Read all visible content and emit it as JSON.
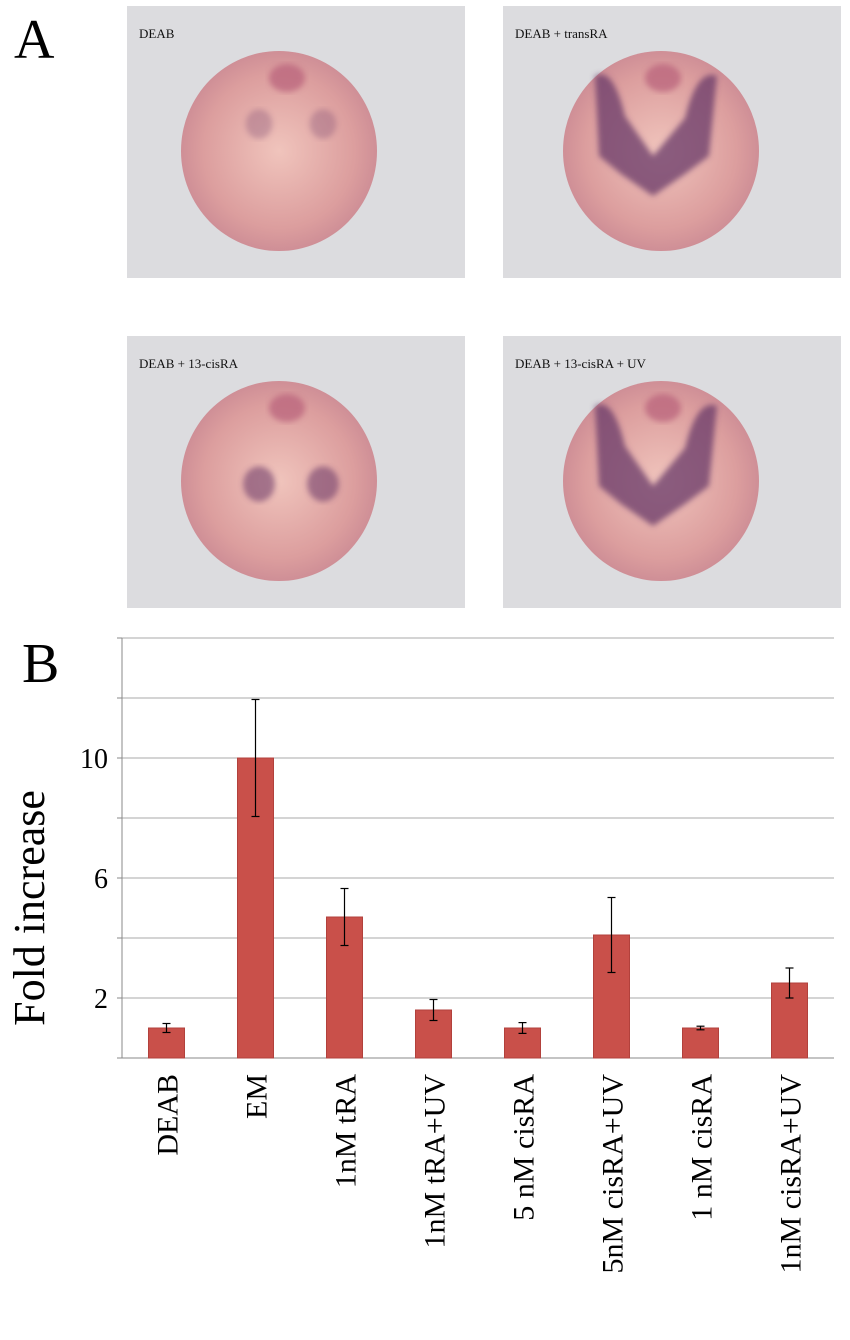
{
  "panel_a": {
    "letter": "A",
    "images": [
      {
        "label": "DEAB",
        "stain": "weak"
      },
      {
        "label": "DEAB + transRA",
        "stain": "strong"
      },
      {
        "label": "DEAB + 13-cisRA",
        "stain": "medium"
      },
      {
        "label": "DEAB + 13-cisRA + UV",
        "stain": "strong"
      }
    ]
  },
  "panel_b": {
    "letter": "B"
  },
  "chart_data": {
    "type": "bar",
    "ylabel": "Fold increase",
    "categories": [
      "DEAB",
      "EM",
      "1nM tRA",
      "1nM tRA+UV",
      "5 nM cisRA",
      "5nM cisRA+UV",
      "1 nM cisRA",
      "1nM cisRA+UV"
    ],
    "values": [
      1.0,
      10.0,
      4.7,
      1.6,
      1.0,
      4.1,
      1.0,
      2.5
    ],
    "errors": [
      0.15,
      1.95,
      0.95,
      0.35,
      0.18,
      1.25,
      0.06,
      0.5
    ],
    "yticks": [
      2,
      6,
      10
    ],
    "ylim": [
      0,
      14
    ],
    "grid": true,
    "bar_color": "#c9504a",
    "gridline_color": "#a8a8a8"
  }
}
